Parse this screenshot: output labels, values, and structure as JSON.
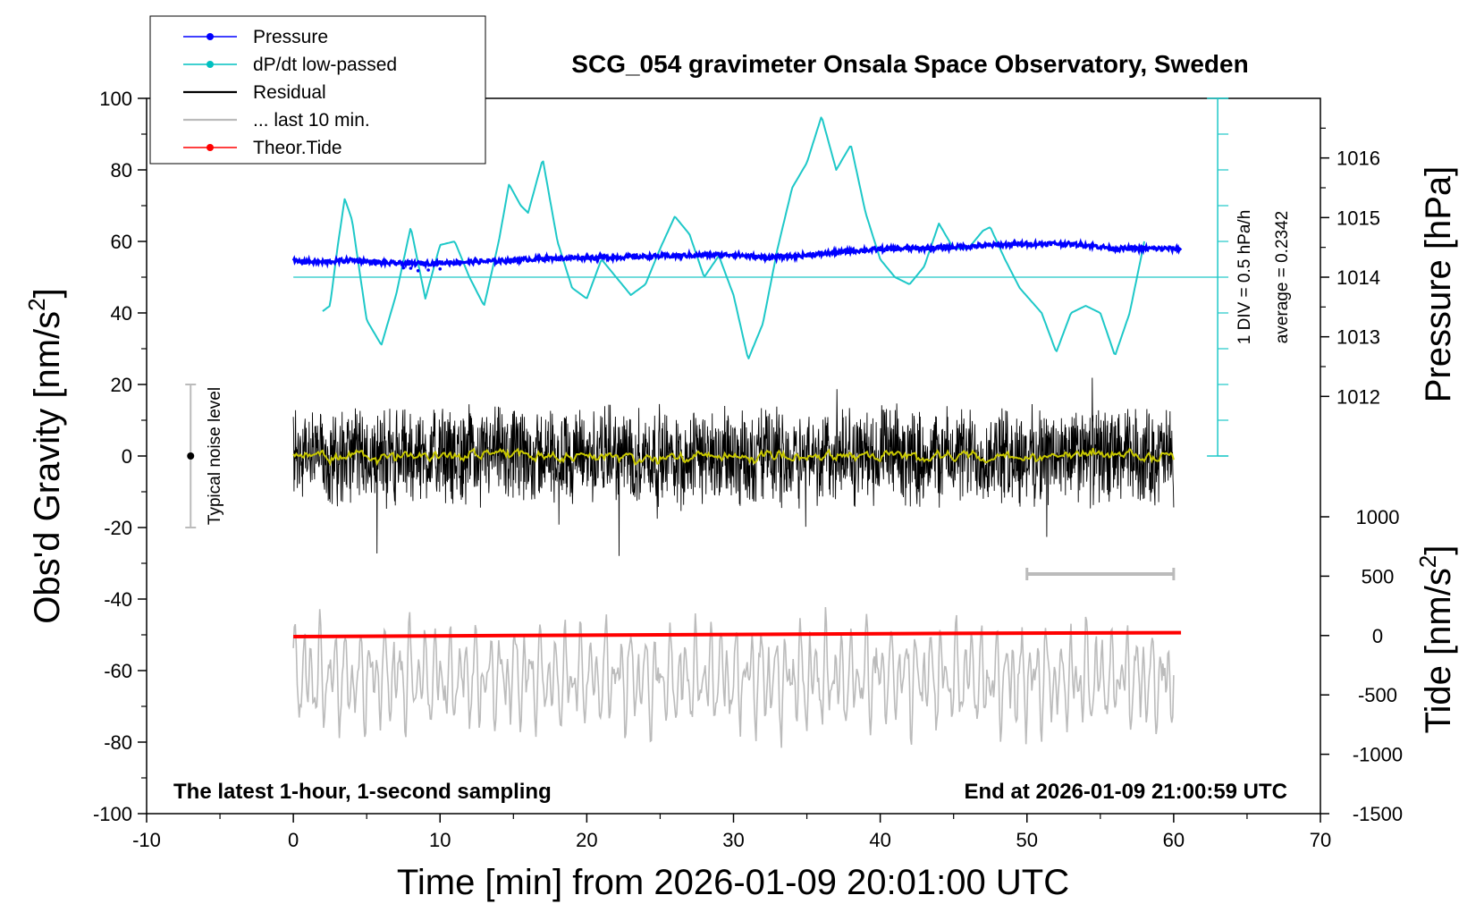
{
  "chart_data": {
    "type": "line",
    "title": "SCG_054 gravimeter Onsala Space Observatory, Sweden",
    "xlabel": "Time [min] from 2026-01-09 20:01:00 UTC",
    "ylabel_left": "Obs'd Gravity [nm/s",
    "ylabel_right_pressure": "Pressure [hPa]",
    "ylabel_right_tide": "Tide [nm/s",
    "superscript": "2",
    "xlim": [
      -10,
      70
    ],
    "ylim": [
      -100,
      100
    ],
    "x_ticks": [
      "-10",
      "0",
      "10",
      "20",
      "30",
      "40",
      "50",
      "60",
      "70"
    ],
    "y_ticks": [
      "-100",
      "-80",
      "-60",
      "-40",
      "-20",
      "0",
      "20",
      "40",
      "60",
      "80",
      "100"
    ],
    "pressure_ticks": [
      "1012",
      "1013",
      "1014",
      "1015",
      "1016"
    ],
    "pressure_axis_range": [
      1011,
      1017
    ],
    "tide_ticks": [
      "-1500",
      "-1000",
      "-500",
      "0",
      "500",
      "1000"
    ],
    "tide_axis_range": [
      -1500,
      1000
    ],
    "legend": [
      {
        "label": "Pressure",
        "color": "#0000ff",
        "marker": true
      },
      {
        "label": "dP/dt low-passed",
        "color": "#00c0c0",
        "marker": true
      },
      {
        "label": "Residual",
        "color": "#000000",
        "marker": false
      },
      {
        "label": "... last 10 min.",
        "color": "#bbbbbb",
        "marker": false
      },
      {
        "label": "Theor.Tide",
        "color": "#ff0000",
        "marker": true
      }
    ],
    "annotations": {
      "bottom_left": "The latest 1-hour, 1-second sampling",
      "bottom_right": "End at 2026-01-09 21:00:59 UTC",
      "noise_label": "Typical noise level",
      "dpdt_scale": "1 DIV = 0.5 hPa/h",
      "dpdt_average": "average = 0.2342"
    },
    "noise_bar": {
      "x": -7,
      "center": 0,
      "low": -20,
      "high": 20
    },
    "last10_range": {
      "x_start": 50,
      "x_end": 60,
      "y": -33
    },
    "dpdt_axis": {
      "x": 63,
      "baseline": 50,
      "top": 100,
      "bottom": 0
    },
    "series": [
      {
        "name": "Pressure",
        "color": "#0000ff",
        "x": [
          0,
          2,
          4,
          6,
          8,
          10,
          12,
          14,
          16,
          18,
          20,
          22,
          24,
          26,
          28,
          30,
          32,
          34,
          36,
          38,
          40,
          42,
          44,
          46,
          48,
          50,
          52,
          54,
          56,
          58,
          60.5
        ],
        "y": [
          54.5,
          54.2,
          54.8,
          54.0,
          53.8,
          54.0,
          54.3,
          54.5,
          55.0,
          55.3,
          55.5,
          55.6,
          55.8,
          56.0,
          56.2,
          56.3,
          55.5,
          55.8,
          56.5,
          57.3,
          57.8,
          58.0,
          58.2,
          58.6,
          59.0,
          59.3,
          59.4,
          59.0,
          58.0,
          58.0,
          58.0
        ]
      },
      {
        "name": "dP/dt low-passed",
        "color": "#1ec8c8",
        "x": [
          2,
          2.5,
          3,
          3.5,
          4,
          4.5,
          5,
          6,
          7,
          8,
          9,
          10,
          11,
          12,
          13,
          14,
          14.7,
          15.5,
          16,
          17,
          18,
          19,
          20,
          21,
          22,
          23,
          24,
          25,
          26,
          27,
          28,
          29,
          30,
          31,
          32,
          33,
          34,
          35,
          36,
          37,
          38,
          39,
          40,
          41,
          42,
          43,
          44,
          45,
          46,
          47,
          47.5,
          48.5,
          49.5,
          51,
          52,
          53,
          54,
          55,
          56,
          57,
          58
        ],
        "y": [
          40.5,
          42,
          58,
          72,
          66,
          52,
          38,
          31,
          45,
          64,
          44,
          59,
          60,
          50,
          42,
          60,
          76,
          70,
          68,
          83,
          60,
          47,
          44,
          55,
          50,
          45,
          48,
          58,
          67,
          62,
          50,
          56,
          45,
          27,
          37,
          58,
          75,
          82,
          95,
          80,
          87,
          68,
          55,
          50,
          48,
          53,
          65,
          58,
          58,
          63,
          64,
          55,
          47,
          40,
          29,
          40,
          42,
          40,
          28,
          40,
          60
        ]
      },
      {
        "name": "Residual",
        "color": "#000000",
        "x": [
          0,
          60
        ],
        "y": [
          0,
          0
        ],
        "amplitude_typical": 13,
        "max": 28,
        "min": -29
      },
      {
        "name": "... last 10 min.",
        "color": "#bbbbbb",
        "x": [
          0,
          60
        ],
        "y": [
          -62,
          -62
        ],
        "min": -84,
        "max": -37
      },
      {
        "name": "Theor.Tide",
        "color": "#ff0000",
        "x": [
          0,
          15,
          30,
          45,
          60.5
        ],
        "y": [
          -50.5,
          -50.2,
          -49.9,
          -49.6,
          -49.4
        ]
      }
    ]
  }
}
